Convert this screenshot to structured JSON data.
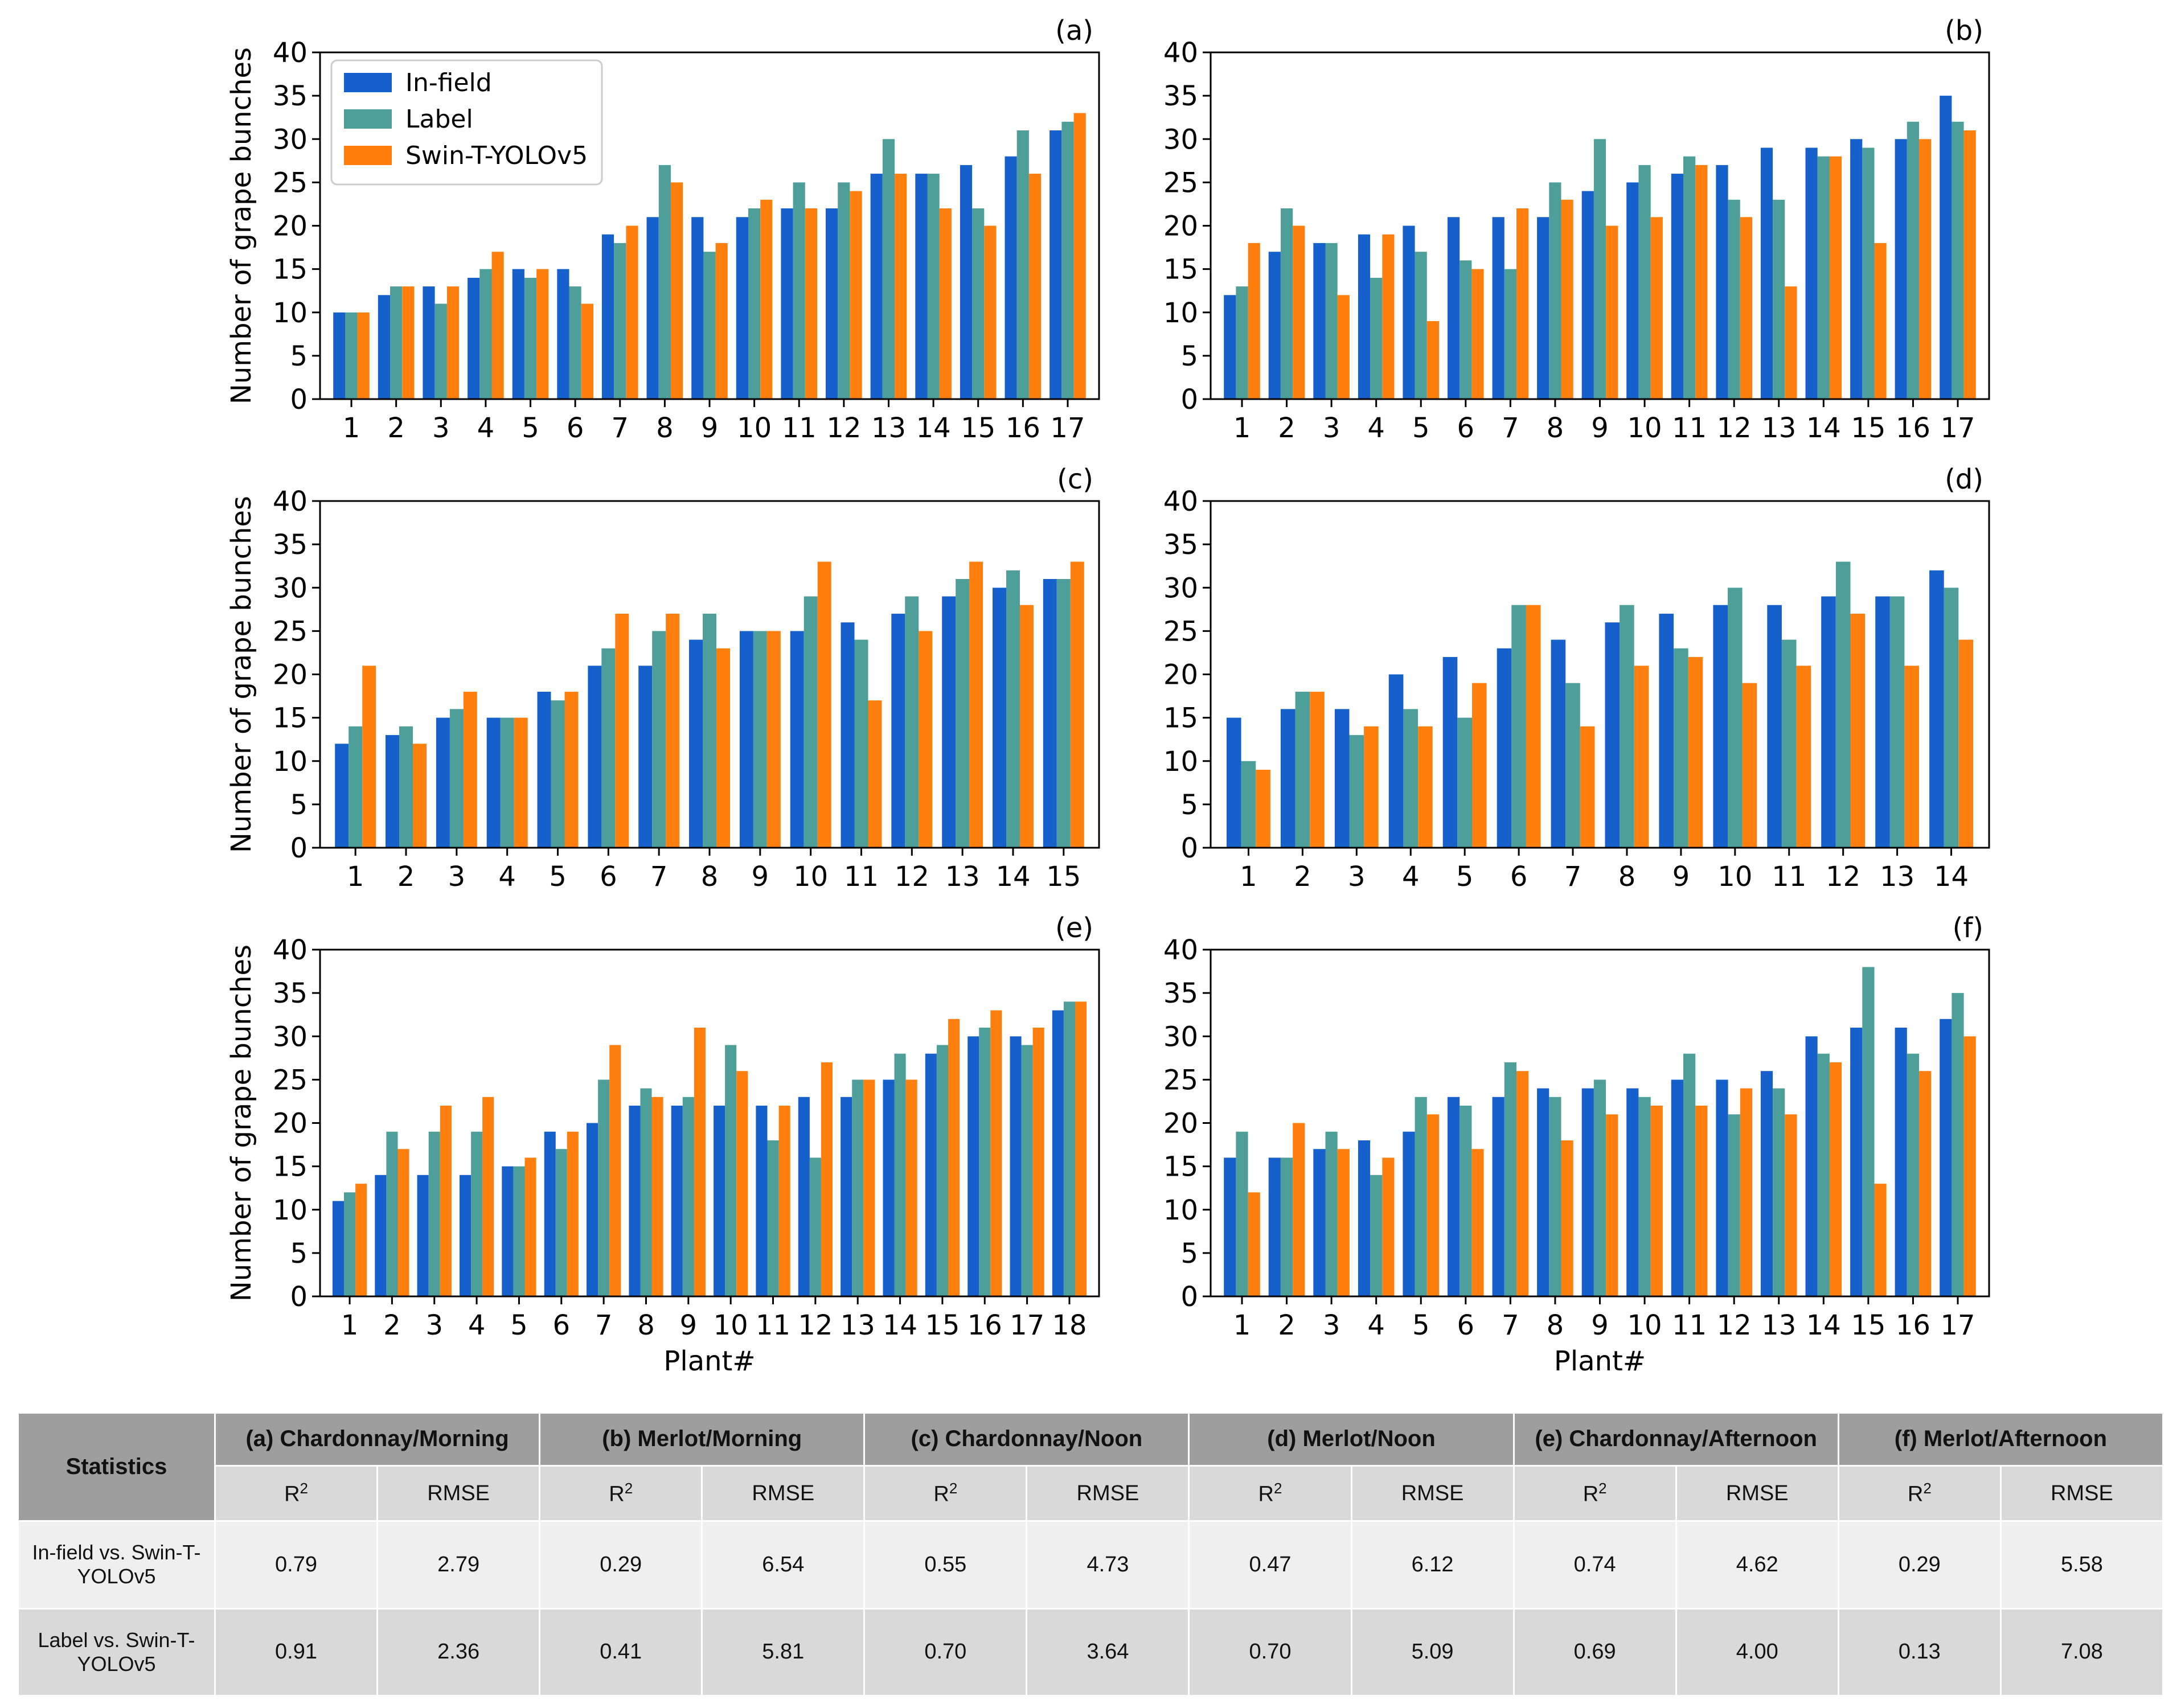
{
  "colors": {
    "infield": "#1660cc",
    "label": "#4e9e9a",
    "swin": "#ff7f0e"
  },
  "chart_data": [
    {
      "panel": "(a)",
      "type": "bar",
      "ylabel": "Number of grape bunches",
      "xlabel": "",
      "ylim": [
        0,
        40
      ],
      "yticks": [
        0,
        5,
        10,
        15,
        20,
        25,
        30,
        35,
        40
      ],
      "categories": [
        "1",
        "2",
        "3",
        "4",
        "5",
        "6",
        "7",
        "8",
        "9",
        "10",
        "11",
        "12",
        "13",
        "14",
        "15",
        "16",
        "17"
      ],
      "legend": {
        "position": "top-left",
        "entries": [
          "In-field",
          "Label",
          "Swin-T-YOLOv5"
        ]
      },
      "series": [
        {
          "name": "In-field",
          "values": [
            10,
            12,
            13,
            14,
            15,
            15,
            19,
            21,
            21,
            21,
            22,
            22,
            26,
            26,
            27,
            28,
            31
          ]
        },
        {
          "name": "Label",
          "values": [
            10,
            13,
            11,
            15,
            14,
            13,
            18,
            27,
            17,
            22,
            25,
            25,
            30,
            26,
            22,
            31,
            32
          ]
        },
        {
          "name": "Swin-T-YOLOv5",
          "values": [
            10,
            13,
            13,
            17,
            15,
            11,
            20,
            25,
            18,
            23,
            22,
            24,
            26,
            22,
            20,
            26,
            33
          ]
        }
      ]
    },
    {
      "panel": "(b)",
      "type": "bar",
      "ylabel": "",
      "xlabel": "",
      "ylim": [
        0,
        40
      ],
      "yticks": [
        0,
        5,
        10,
        15,
        20,
        25,
        30,
        35,
        40
      ],
      "categories": [
        "1",
        "2",
        "3",
        "4",
        "5",
        "6",
        "7",
        "8",
        "9",
        "10",
        "11",
        "12",
        "13",
        "14",
        "15",
        "16",
        "17"
      ],
      "series": [
        {
          "name": "In-field",
          "values": [
            12,
            17,
            18,
            19,
            20,
            21,
            21,
            21,
            24,
            25,
            26,
            27,
            29,
            29,
            30,
            30,
            35
          ]
        },
        {
          "name": "Label",
          "values": [
            13,
            22,
            18,
            14,
            17,
            16,
            15,
            25,
            30,
            27,
            28,
            23,
            23,
            28,
            29,
            32,
            32
          ]
        },
        {
          "name": "Swin-T-YOLOv5",
          "values": [
            18,
            20,
            12,
            19,
            9,
            15,
            22,
            23,
            20,
            21,
            27,
            21,
            13,
            28,
            18,
            30,
            31
          ]
        }
      ]
    },
    {
      "panel": "(c)",
      "type": "bar",
      "ylabel": "Number of grape bunches",
      "xlabel": "",
      "ylim": [
        0,
        40
      ],
      "yticks": [
        0,
        5,
        10,
        15,
        20,
        25,
        30,
        35,
        40
      ],
      "categories": [
        "1",
        "2",
        "3",
        "4",
        "5",
        "6",
        "7",
        "8",
        "9",
        "10",
        "11",
        "12",
        "13",
        "14",
        "15"
      ],
      "series": [
        {
          "name": "In-field",
          "values": [
            12,
            13,
            15,
            15,
            18,
            21,
            21,
            24,
            25,
            25,
            26,
            27,
            29,
            30,
            31
          ]
        },
        {
          "name": "Label",
          "values": [
            14,
            14,
            16,
            15,
            17,
            23,
            25,
            27,
            25,
            29,
            24,
            29,
            31,
            32,
            31
          ]
        },
        {
          "name": "Swin-T-YOLOv5",
          "values": [
            21,
            12,
            18,
            15,
            18,
            27,
            27,
            23,
            25,
            33,
            17,
            25,
            33,
            28,
            33
          ]
        }
      ]
    },
    {
      "panel": "(d)",
      "type": "bar",
      "ylabel": "",
      "xlabel": "",
      "ylim": [
        0,
        40
      ],
      "yticks": [
        0,
        5,
        10,
        15,
        20,
        25,
        30,
        35,
        40
      ],
      "categories": [
        "1",
        "2",
        "3",
        "4",
        "5",
        "6",
        "7",
        "8",
        "9",
        "10",
        "11",
        "12",
        "13",
        "14"
      ],
      "series": [
        {
          "name": "In-field",
          "values": [
            15,
            16,
            16,
            20,
            22,
            23,
            24,
            26,
            27,
            28,
            28,
            29,
            29,
            32
          ]
        },
        {
          "name": "Label",
          "values": [
            10,
            18,
            13,
            16,
            15,
            28,
            19,
            28,
            23,
            30,
            24,
            33,
            29,
            30
          ]
        },
        {
          "name": "Swin-T-YOLOv5",
          "values": [
            9,
            18,
            14,
            14,
            19,
            28,
            14,
            21,
            22,
            19,
            21,
            27,
            21,
            24
          ]
        }
      ]
    },
    {
      "panel": "(e)",
      "type": "bar",
      "ylabel": "Number of grape bunches",
      "xlabel": "Plant#",
      "ylim": [
        0,
        40
      ],
      "yticks": [
        0,
        5,
        10,
        15,
        20,
        25,
        30,
        35,
        40
      ],
      "categories": [
        "1",
        "2",
        "3",
        "4",
        "5",
        "6",
        "7",
        "8",
        "9",
        "10",
        "11",
        "12",
        "13",
        "14",
        "15",
        "16",
        "17",
        "18"
      ],
      "series": [
        {
          "name": "In-field",
          "values": [
            11,
            14,
            14,
            14,
            15,
            19,
            20,
            22,
            22,
            22,
            22,
            23,
            23,
            25,
            28,
            30,
            30,
            33
          ]
        },
        {
          "name": "Label",
          "values": [
            12,
            19,
            19,
            19,
            15,
            17,
            25,
            24,
            23,
            29,
            18,
            16,
            25,
            28,
            29,
            31,
            29,
            34
          ]
        },
        {
          "name": "Swin-T-YOLOv5",
          "values": [
            13,
            17,
            22,
            23,
            16,
            19,
            29,
            23,
            31,
            26,
            22,
            27,
            25,
            25,
            32,
            33,
            31,
            34
          ]
        }
      ]
    },
    {
      "panel": "(f)",
      "type": "bar",
      "ylabel": "",
      "xlabel": "Plant#",
      "ylim": [
        0,
        40
      ],
      "yticks": [
        0,
        5,
        10,
        15,
        20,
        25,
        30,
        35,
        40
      ],
      "categories": [
        "1",
        "2",
        "3",
        "4",
        "5",
        "6",
        "7",
        "8",
        "9",
        "10",
        "11",
        "12",
        "13",
        "14",
        "15",
        "16",
        "17"
      ],
      "series": [
        {
          "name": "In-field",
          "values": [
            16,
            16,
            17,
            18,
            19,
            23,
            23,
            24,
            24,
            24,
            25,
            25,
            26,
            30,
            31,
            31,
            32
          ]
        },
        {
          "name": "Label",
          "values": [
            19,
            16,
            19,
            14,
            23,
            22,
            27,
            23,
            25,
            23,
            28,
            21,
            24,
            28,
            38,
            28,
            35
          ]
        },
        {
          "name": "Swin-T-YOLOv5",
          "values": [
            12,
            20,
            17,
            16,
            21,
            17,
            26,
            18,
            21,
            22,
            22,
            24,
            21,
            27,
            13,
            26,
            30
          ]
        }
      ]
    }
  ],
  "table": {
    "corner": "Statistics",
    "groups": [
      "(a) Chardonnay/Morning",
      "(b) Merlot/Morning",
      "(c) Chardonnay/Noon",
      "(d) Merlot/Noon",
      "(e) Chardonnay/Afternoon",
      "(f) Merlot/Afternoon"
    ],
    "sub": {
      "r2_base": "R",
      "r2_sup": "2",
      "rmse": "RMSE"
    },
    "rows": [
      {
        "label": "In-field vs. Swin-T-YOLOv5",
        "values": [
          "0.79",
          "2.79",
          "0.29",
          "6.54",
          "0.55",
          "4.73",
          "0.47",
          "6.12",
          "0.74",
          "4.62",
          "0.29",
          "5.58"
        ]
      },
      {
        "label": "Label vs. Swin-T-YOLOv5",
        "values": [
          "0.91",
          "2.36",
          "0.41",
          "5.81",
          "0.70",
          "3.64",
          "0.70",
          "5.09",
          "0.69",
          "4.00",
          "0.13",
          "7.08"
        ]
      }
    ]
  }
}
